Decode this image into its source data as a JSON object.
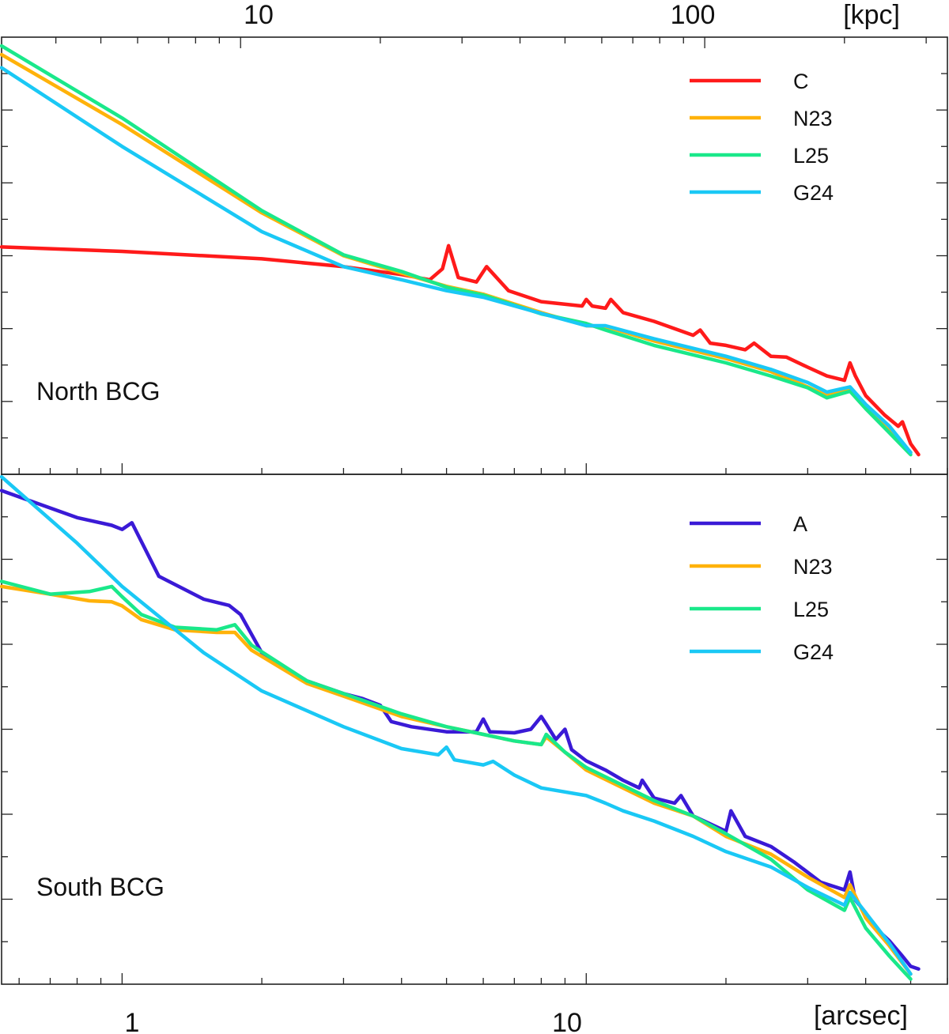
{
  "chart_data": [
    {
      "type": "line",
      "panel": "top",
      "title": "North BCG",
      "xscale": "log",
      "xlim": [
        0.55,
        60
      ],
      "x_top_axis": {
        "unit_label": "[kpc]",
        "tick_labels": [
          "10",
          "100"
        ],
        "tick_values_arcsec": [
          1.8,
          18
        ]
      },
      "ylim": [
        0,
        1
      ],
      "legend_position": "top-right",
      "series": [
        {
          "name": "C",
          "color": "#ff1a1a",
          "x": [
            0.55,
            1.0,
            2.0,
            3.0,
            4.0,
            4.6,
            4.9,
            5.05,
            5.3,
            5.8,
            6.1,
            6.8,
            8.0,
            9.8,
            10.0,
            10.3,
            11.0,
            11.3,
            12.0,
            14.0,
            17.0,
            17.6,
            18.5,
            20.0,
            22.0,
            23.0,
            25.0,
            27.0,
            30.0,
            33.0,
            36.0,
            37.0,
            38.0,
            40.0,
            44.0,
            47.0,
            48.0,
            50.0,
            52.0
          ],
          "y": [
            0.52,
            0.51,
            0.493,
            0.475,
            0.457,
            0.445,
            0.47,
            0.523,
            0.45,
            0.44,
            0.475,
            0.42,
            0.395,
            0.385,
            0.4,
            0.385,
            0.38,
            0.4,
            0.37,
            0.35,
            0.318,
            0.33,
            0.3,
            0.295,
            0.285,
            0.3,
            0.27,
            0.268,
            0.245,
            0.225,
            0.215,
            0.255,
            0.225,
            0.18,
            0.135,
            0.11,
            0.12,
            0.07,
            0.045
          ]
        },
        {
          "name": "N23",
          "color": "#ffb20a",
          "x": [
            0.55,
            1.0,
            2.0,
            3.0,
            4.0,
            5.0,
            6.0,
            8.0,
            10.0,
            11.0,
            14.0,
            20.0,
            25.0,
            30.0,
            33.0,
            37.0,
            40.0,
            45.0,
            50.0
          ],
          "y": [
            0.96,
            0.8,
            0.598,
            0.5,
            0.46,
            0.43,
            0.412,
            0.37,
            0.34,
            0.338,
            0.305,
            0.265,
            0.235,
            0.2,
            0.18,
            0.195,
            0.155,
            0.1,
            0.05
          ]
        },
        {
          "name": "L25",
          "color": "#1ae88a",
          "x": [
            0.55,
            1.0,
            2.0,
            3.0,
            4.0,
            5.0,
            6.0,
            8.0,
            10.0,
            11.0,
            14.0,
            20.0,
            25.0,
            30.0,
            33.0,
            37.0,
            40.0,
            45.0,
            50.0
          ],
          "y": [
            0.98,
            0.815,
            0.603,
            0.502,
            0.464,
            0.428,
            0.41,
            0.367,
            0.345,
            0.33,
            0.295,
            0.255,
            0.225,
            0.198,
            0.175,
            0.19,
            0.15,
            0.095,
            0.045
          ]
        },
        {
          "name": "G24",
          "color": "#1ac8f5",
          "x": [
            0.55,
            1.0,
            2.0,
            3.0,
            4.0,
            5.0,
            6.0,
            8.0,
            10.0,
            11.0,
            14.0,
            20.0,
            25.0,
            30.0,
            33.0,
            37.0,
            40.0,
            45.0,
            50.0
          ],
          "y": [
            0.93,
            0.75,
            0.555,
            0.475,
            0.445,
            0.42,
            0.405,
            0.368,
            0.34,
            0.34,
            0.31,
            0.27,
            0.24,
            0.21,
            0.188,
            0.2,
            0.16,
            0.11,
            0.05
          ]
        }
      ],
      "legend": [
        "C",
        "N23",
        "L25",
        "G24"
      ]
    },
    {
      "type": "line",
      "panel": "bottom",
      "title": "South BCG",
      "xscale": "log",
      "xlim": [
        0.55,
        60
      ],
      "xlabel": "[arcsec]",
      "x_tick_labels": [
        "1",
        "10"
      ],
      "x_tick_values": [
        1,
        10
      ],
      "ylim": [
        0,
        1
      ],
      "legend_position": "top-right",
      "series": [
        {
          "name": "A",
          "color": "#3a1ad6",
          "x": [
            0.55,
            0.8,
            0.95,
            1.0,
            1.05,
            1.2,
            1.5,
            1.7,
            1.8,
            2.0,
            2.5,
            3.0,
            3.3,
            3.6,
            3.8,
            4.2,
            5.0,
            5.8,
            6.0,
            6.2,
            7.0,
            7.6,
            8.0,
            8.2,
            8.6,
            9.0,
            9.3,
            10.0,
            11.0,
            12.0,
            13.0,
            13.2,
            14.0,
            15.5,
            16.0,
            17.0,
            20.0,
            20.5,
            22.0,
            25.0,
            28.0,
            32.0,
            36.0,
            37.0,
            38.0,
            40.0,
            42.0,
            45.0,
            48.0,
            50.0,
            52.0
          ],
          "y": [
            0.968,
            0.915,
            0.9,
            0.892,
            0.905,
            0.8,
            0.755,
            0.743,
            0.725,
            0.65,
            0.595,
            0.57,
            0.56,
            0.547,
            0.515,
            0.505,
            0.495,
            0.495,
            0.52,
            0.495,
            0.493,
            0.5,
            0.525,
            0.51,
            0.48,
            0.5,
            0.46,
            0.438,
            0.42,
            0.4,
            0.385,
            0.4,
            0.365,
            0.355,
            0.37,
            0.33,
            0.3,
            0.34,
            0.29,
            0.27,
            0.24,
            0.2,
            0.185,
            0.22,
            0.165,
            0.14,
            0.11,
            0.085,
            0.055,
            0.035,
            0.03
          ]
        },
        {
          "name": "N23",
          "color": "#ffb20a",
          "x": [
            0.55,
            0.7,
            0.85,
            0.95,
            1.0,
            1.1,
            1.3,
            1.6,
            1.75,
            1.9,
            2.5,
            3.0,
            4.0,
            5.0,
            6.0,
            7.0,
            8.0,
            8.2,
            9.0,
            10.0,
            14.0,
            17.0,
            20.0,
            25.0,
            30.0,
            36.0,
            37.0,
            40.0,
            45.0,
            50.0
          ],
          "y": [
            0.78,
            0.765,
            0.752,
            0.75,
            0.742,
            0.715,
            0.695,
            0.69,
            0.69,
            0.655,
            0.59,
            0.565,
            0.525,
            0.505,
            0.49,
            0.477,
            0.47,
            0.485,
            0.455,
            0.42,
            0.355,
            0.33,
            0.29,
            0.255,
            0.21,
            0.17,
            0.195,
            0.13,
            0.075,
            0.02
          ]
        },
        {
          "name": "L25",
          "color": "#1ae88a",
          "x": [
            0.55,
            0.7,
            0.85,
            0.95,
            1.0,
            1.1,
            1.3,
            1.6,
            1.75,
            1.9,
            2.5,
            3.0,
            4.0,
            5.0,
            6.0,
            7.0,
            8.0,
            8.2,
            9.0,
            10.0,
            14.0,
            17.0,
            20.0,
            25.0,
            30.0,
            36.0,
            37.0,
            40.0,
            45.0,
            50.0
          ],
          "y": [
            0.79,
            0.765,
            0.77,
            0.78,
            0.76,
            0.725,
            0.7,
            0.695,
            0.705,
            0.665,
            0.595,
            0.57,
            0.53,
            0.505,
            0.49,
            0.477,
            0.47,
            0.49,
            0.455,
            0.425,
            0.36,
            0.33,
            0.295,
            0.245,
            0.185,
            0.145,
            0.17,
            0.11,
            0.055,
            0.01
          ]
        },
        {
          "name": "G24",
          "color": "#1ac8f5",
          "x": [
            0.55,
            0.8,
            1.0,
            1.5,
            2.0,
            3.0,
            4.0,
            4.8,
            5.0,
            5.2,
            6.0,
            6.3,
            7.0,
            8.0,
            10.0,
            11.0,
            12.0,
            14.0,
            17.0,
            20.0,
            25.0,
            30.0,
            36.0,
            37.0,
            40.0,
            45.0,
            50.0
          ],
          "y": [
            0.995,
            0.865,
            0.78,
            0.65,
            0.575,
            0.505,
            0.462,
            0.45,
            0.465,
            0.44,
            0.43,
            0.437,
            0.41,
            0.385,
            0.37,
            0.355,
            0.34,
            0.32,
            0.29,
            0.26,
            0.23,
            0.19,
            0.155,
            0.18,
            0.14,
            0.08,
            0.02
          ]
        }
      ],
      "legend": [
        "A",
        "N23",
        "L25",
        "G24"
      ]
    }
  ]
}
